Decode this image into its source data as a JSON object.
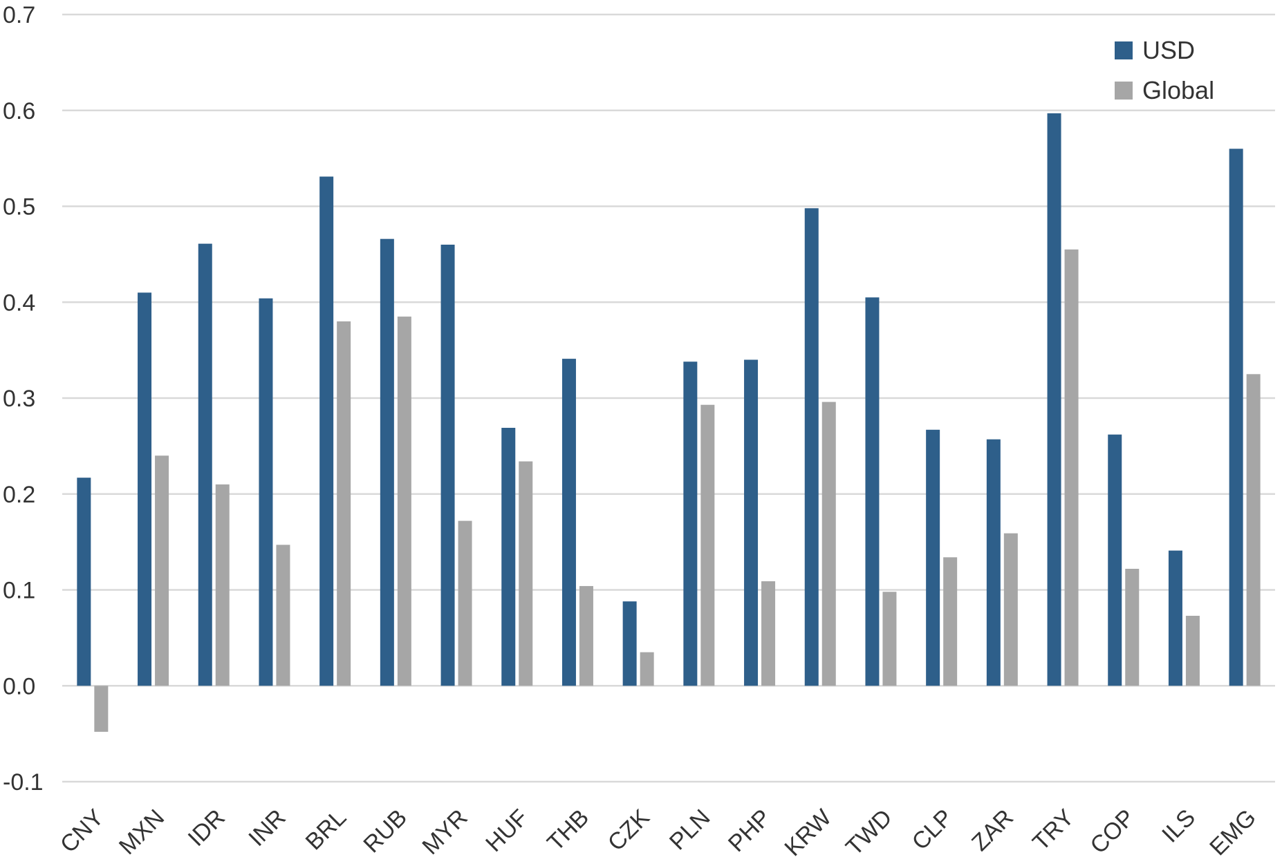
{
  "chart_data": {
    "type": "bar",
    "title": "",
    "xlabel": "",
    "ylabel": "",
    "ylim": [
      -0.1,
      0.7
    ],
    "yticks": [
      "-0.1",
      "0.0",
      "0.1",
      "0.2",
      "0.3",
      "0.4",
      "0.5",
      "0.6",
      "0.7"
    ],
    "grid": true,
    "legend_position": "top-right",
    "categories": [
      "CNY",
      "MXN",
      "IDR",
      "INR",
      "BRL",
      "RUB",
      "MYR",
      "HUF",
      "THB",
      "CZK",
      "PLN",
      "PHP",
      "KRW",
      "TWD",
      "CLP",
      "ZAR",
      "TRY",
      "COP",
      "ILS",
      "EMG"
    ],
    "series": [
      {
        "name": "USD",
        "color": "#2e5f8a",
        "values": [
          0.217,
          0.41,
          0.461,
          0.404,
          0.531,
          0.466,
          0.46,
          0.269,
          0.341,
          0.088,
          0.338,
          0.34,
          0.498,
          0.405,
          0.267,
          0.257,
          0.597,
          0.262,
          0.141,
          0.56
        ]
      },
      {
        "name": "Global",
        "color": "#a6a6a6",
        "values": [
          -0.048,
          0.24,
          0.21,
          0.147,
          0.38,
          0.385,
          0.172,
          0.234,
          0.104,
          0.035,
          0.293,
          0.109,
          0.296,
          0.098,
          0.134,
          0.159,
          0.455,
          0.122,
          0.073,
          0.325
        ]
      }
    ]
  }
}
